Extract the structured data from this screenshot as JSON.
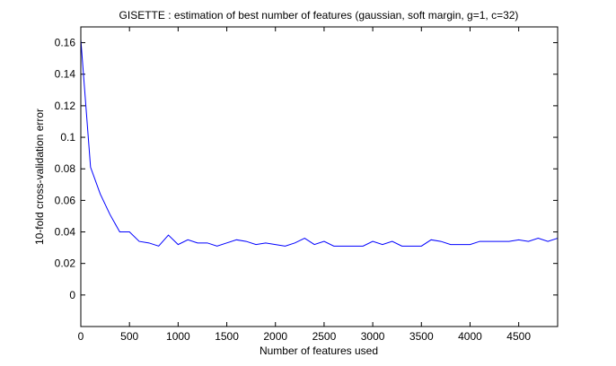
{
  "chart_data": {
    "type": "line",
    "title": "GISETTE : estimation of best number of features (gaussian, soft margin, g=1, c=32)",
    "xlabel": "Number of features used",
    "ylabel": "10-fold cross-validation error",
    "xlim": [
      0,
      4900
    ],
    "ylim": [
      -0.02,
      0.17
    ],
    "xticks": [
      0,
      500,
      1000,
      1500,
      2000,
      2500,
      3000,
      3500,
      4000,
      4500
    ],
    "xtick_labels": [
      "0",
      "500",
      "1000",
      "1500",
      "2000",
      "2500",
      "3000",
      "3500",
      "4000",
      "4500"
    ],
    "yticks": [
      0,
      0.02,
      0.04,
      0.06,
      0.08,
      0.1,
      0.12,
      0.14,
      0.16
    ],
    "ytick_labels": [
      "0",
      "0.02",
      "0.04",
      "0.06",
      "0.08",
      "0.1",
      "0.12",
      "0.14",
      "0.16"
    ],
    "grid": false,
    "line_color": "#0000ff",
    "series": [
      {
        "x": [
          0,
          100,
          200,
          300,
          400,
          500,
          600,
          700,
          800,
          900,
          1000,
          1100,
          1200,
          1300,
          1400,
          1500,
          1600,
          1700,
          1800,
          1900,
          2000,
          2100,
          2200,
          2300,
          2400,
          2500,
          2600,
          2700,
          2800,
          2900,
          3000,
          3100,
          3200,
          3300,
          3400,
          3500,
          3600,
          3700,
          3800,
          3900,
          4000,
          4100,
          4200,
          4300,
          4400,
          4500,
          4600,
          4700,
          4800,
          4900
        ],
        "y": [
          0.162,
          0.081,
          0.064,
          0.051,
          0.04,
          0.04,
          0.034,
          0.033,
          0.031,
          0.038,
          0.032,
          0.035,
          0.033,
          0.033,
          0.031,
          0.033,
          0.035,
          0.034,
          0.032,
          0.033,
          0.032,
          0.031,
          0.033,
          0.036,
          0.032,
          0.034,
          0.031,
          0.031,
          0.031,
          0.031,
          0.034,
          0.032,
          0.034,
          0.031,
          0.031,
          0.031,
          0.035,
          0.034,
          0.032,
          0.032,
          0.032,
          0.034,
          0.034,
          0.034,
          0.034,
          0.035,
          0.034,
          0.036,
          0.034,
          0.036
        ]
      }
    ]
  }
}
